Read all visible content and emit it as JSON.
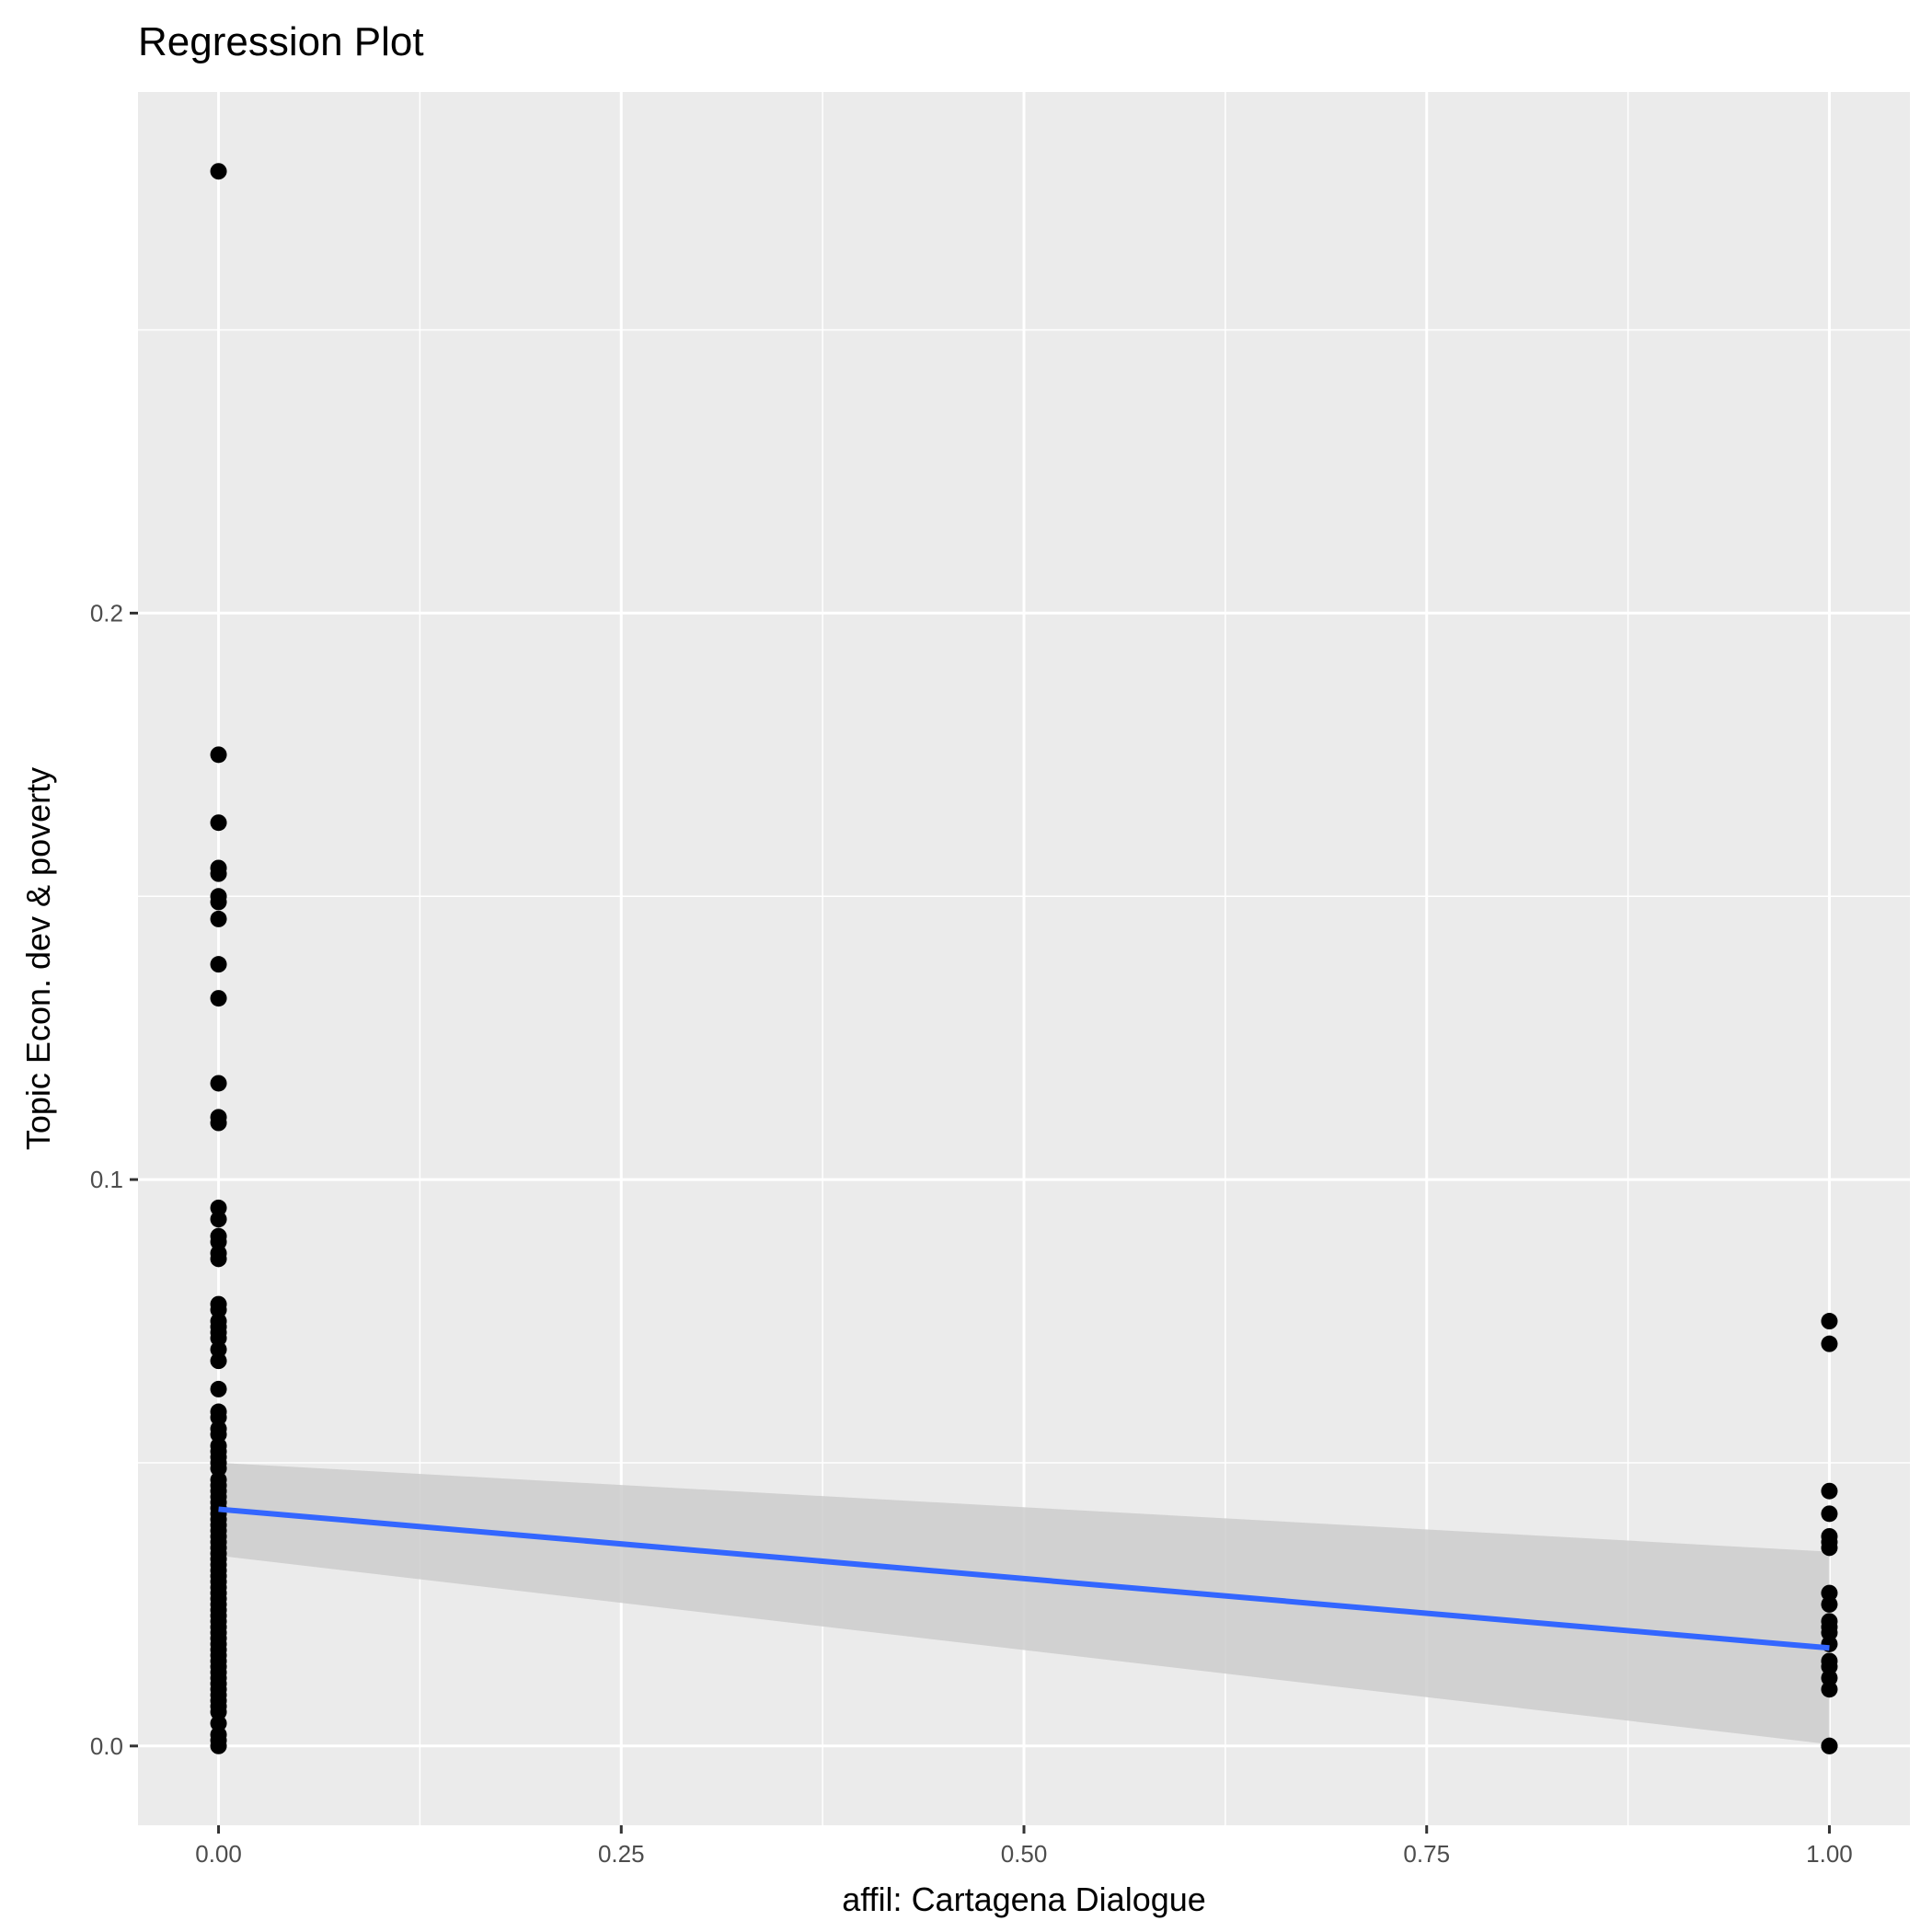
{
  "chart_data": {
    "type": "scatter",
    "title": "Regression Plot",
    "xlabel": "affil: Cartagena Dialogue",
    "ylabel": "Topic Econ. dev & poverty",
    "xlim": [
      -0.05,
      1.05
    ],
    "ylim": [
      -0.014,
      0.292
    ],
    "x_ticks": [
      {
        "value": 0.0,
        "label": "0.00"
      },
      {
        "value": 0.25,
        "label": "0.25"
      },
      {
        "value": 0.5,
        "label": "0.50"
      },
      {
        "value": 0.75,
        "label": "0.75"
      },
      {
        "value": 1.0,
        "label": "1.00"
      }
    ],
    "y_ticks": [
      {
        "value": 0.0,
        "label": "0.0"
      },
      {
        "value": 0.1,
        "label": "0.1"
      },
      {
        "value": 0.2,
        "label": "0.2"
      }
    ],
    "grid": true,
    "colors": {
      "panel": "#ebebeb",
      "grid": "#ffffff",
      "points": "#000000",
      "regression_line": "#3366ff",
      "confidence_band": "#cccccc"
    },
    "series": [
      {
        "x": 0,
        "y": [
          0.278,
          0.175,
          0.163,
          0.155,
          0.154,
          0.15,
          0.149,
          0.146,
          0.138,
          0.132,
          0.117,
          0.111,
          0.11,
          0.095,
          0.093,
          0.09,
          0.089,
          0.087,
          0.086,
          0.078,
          0.077,
          0.075,
          0.074,
          0.073,
          0.072,
          0.07,
          0.068,
          0.063,
          0.059,
          0.058,
          0.056,
          0.055,
          0.053,
          0.052,
          0.051,
          0.05,
          0.049,
          0.047,
          0.046,
          0.045,
          0.044,
          0.043,
          0.042,
          0.041,
          0.04,
          0.039,
          0.038,
          0.037,
          0.036,
          0.035,
          0.034,
          0.033,
          0.032,
          0.031,
          0.03,
          0.029,
          0.028,
          0.027,
          0.026,
          0.025,
          0.024,
          0.023,
          0.022,
          0.021,
          0.02,
          0.019,
          0.018,
          0.017,
          0.016,
          0.015,
          0.014,
          0.013,
          0.012,
          0.011,
          0.01,
          0.009,
          0.008,
          0.007,
          0.006,
          0.004,
          0.002,
          0.001,
          0.0
        ]
      },
      {
        "x": 1,
        "y": [
          0.075,
          0.071,
          0.045,
          0.041,
          0.037,
          0.036,
          0.035,
          0.027,
          0.025,
          0.022,
          0.021,
          0.02,
          0.018,
          0.015,
          0.014,
          0.012,
          0.01,
          0.0,
          0.0
        ]
      }
    ],
    "regression": {
      "x": [
        0,
        1
      ],
      "y": [
        0.0418,
        0.0173
      ],
      "band_lower": [
        0.0336,
        0.0003
      ],
      "band_upper": [
        0.05,
        0.0343
      ]
    }
  }
}
